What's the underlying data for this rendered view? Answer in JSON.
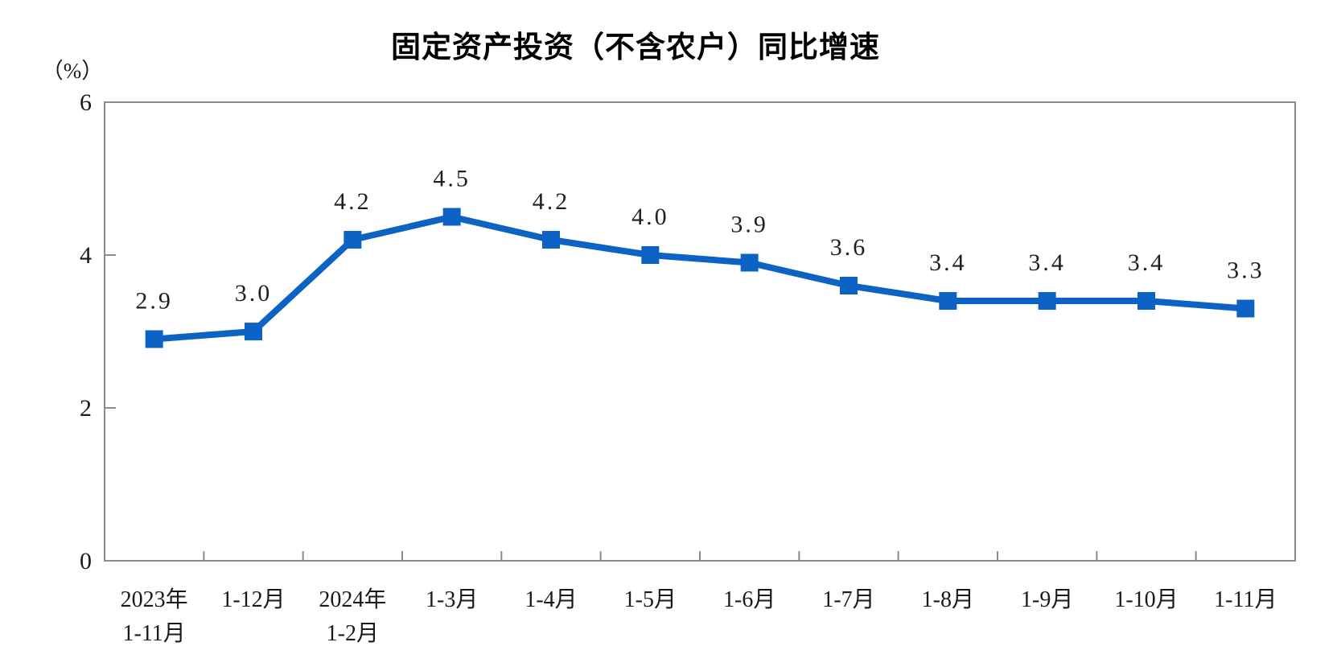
{
  "chart_data": {
    "type": "line",
    "title": "固定资产投资（不含农户）同比增速",
    "unit_label": "（%）",
    "categories": [
      "2023年\n1-11月",
      "1-12月",
      "2024年\n1-2月",
      "1-3月",
      "1-4月",
      "1-5月",
      "1-6月",
      "1-7月",
      "1-8月",
      "1-9月",
      "1-10月",
      "1-11月"
    ],
    "values": [
      2.9,
      3.0,
      4.2,
      4.5,
      4.2,
      4.0,
      3.9,
      3.6,
      3.4,
      3.4,
      3.4,
      3.3
    ],
    "value_labels": [
      "2.9",
      "3.0",
      "4.2",
      "4.5",
      "4.2",
      "4.0",
      "3.9",
      "3.6",
      "3.4",
      "3.4",
      "3.4",
      "3.3"
    ],
    "xlabel": "",
    "ylabel": "（%）",
    "yticks": [
      0,
      2,
      4,
      6
    ],
    "ylim": [
      0,
      6
    ],
    "grid": false,
    "legend": null,
    "marker": "square",
    "colors": {
      "line": "#0d63c4",
      "marker": "#0d63c4",
      "axis": "#8c8c8c",
      "tick_text": "#1a1a1a",
      "value_label_text": "#1f1f1f",
      "title_text": "#000000",
      "background": "#ffffff"
    }
  }
}
